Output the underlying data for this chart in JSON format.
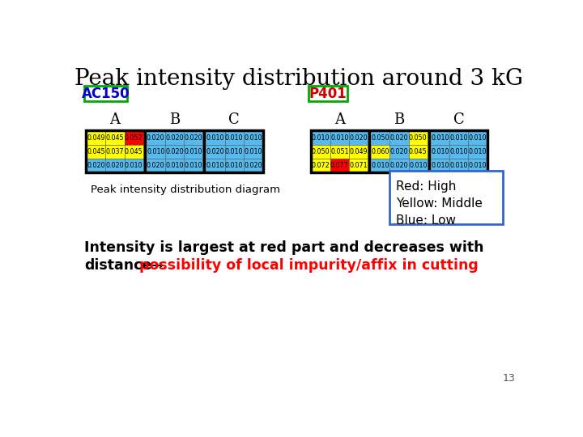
{
  "title": "Peak intensity distribution around 3 kG",
  "title_fontsize": 20,
  "ac150_label": "AC150",
  "p401_label": "P401",
  "col_labels": [
    "A",
    "B",
    "C"
  ],
  "ac150_values": [
    [
      [
        0.049,
        0.045,
        0.052
      ],
      [
        0.02,
        0.02,
        0.02
      ],
      [
        0.01,
        0.01,
        0.01
      ]
    ],
    [
      [
        0.045,
        0.037,
        0.045
      ],
      [
        0.01,
        0.02,
        0.01
      ],
      [
        0.02,
        0.01,
        0.01
      ]
    ],
    [
      [
        0.02,
        0.02,
        0.01
      ],
      [
        0.02,
        0.01,
        0.01
      ],
      [
        0.01,
        0.01,
        0.02
      ]
    ]
  ],
  "ac150_colors": [
    [
      [
        "yellow",
        "yellow",
        "red"
      ],
      [
        "cyan",
        "cyan",
        "cyan"
      ],
      [
        "cyan",
        "cyan",
        "cyan"
      ]
    ],
    [
      [
        "yellow",
        "yellow",
        "yellow"
      ],
      [
        "cyan",
        "cyan",
        "cyan"
      ],
      [
        "cyan",
        "cyan",
        "cyan"
      ]
    ],
    [
      [
        "cyan",
        "cyan",
        "cyan"
      ],
      [
        "cyan",
        "cyan",
        "cyan"
      ],
      [
        "cyan",
        "cyan",
        "cyan"
      ]
    ]
  ],
  "p401_values": [
    [
      [
        0.01,
        0.01,
        0.02
      ],
      [
        0.05,
        0.02,
        0.05
      ],
      [
        0.01,
        0.01,
        0.01
      ]
    ],
    [
      [
        0.05,
        0.051,
        0.049
      ],
      [
        0.06,
        0.02,
        0.045
      ],
      [
        0.01,
        0.01,
        0.01
      ]
    ],
    [
      [
        0.072,
        0.077,
        0.071
      ],
      [
        0.01,
        0.02,
        0.01
      ],
      [
        0.01,
        0.01,
        0.01
      ]
    ]
  ],
  "p401_colors": [
    [
      [
        "cyan",
        "cyan",
        "cyan"
      ],
      [
        "cyan",
        "cyan",
        "yellow"
      ],
      [
        "cyan",
        "cyan",
        "cyan"
      ]
    ],
    [
      [
        "yellow",
        "yellow",
        "yellow"
      ],
      [
        "yellow",
        "cyan",
        "yellow"
      ],
      [
        "cyan",
        "cyan",
        "cyan"
      ]
    ],
    [
      [
        "yellow",
        "red",
        "yellow"
      ],
      [
        "cyan",
        "cyan",
        "cyan"
      ],
      [
        "cyan",
        "cyan",
        "cyan"
      ]
    ]
  ],
  "bottom_text1": "Intensity is largest at red part and decreases with",
  "bottom_text2_black": "distance→",
  "bottom_text2_red": "possibility of local impurity/affix in cutting",
  "caption": "Peak intensity distribution diagram",
  "legend_lines": [
    "Red: High",
    "Yellow: Middle",
    "Blue: Low"
  ],
  "page_num": "13",
  "cyan": "#55BBEE",
  "yellow": "#FFFF00",
  "red": "#FF0000",
  "green_border": "#00AA00",
  "blue_border": "#3366CC",
  "ac150_blue": "#0000CC",
  "p401_red": "#CC0000"
}
